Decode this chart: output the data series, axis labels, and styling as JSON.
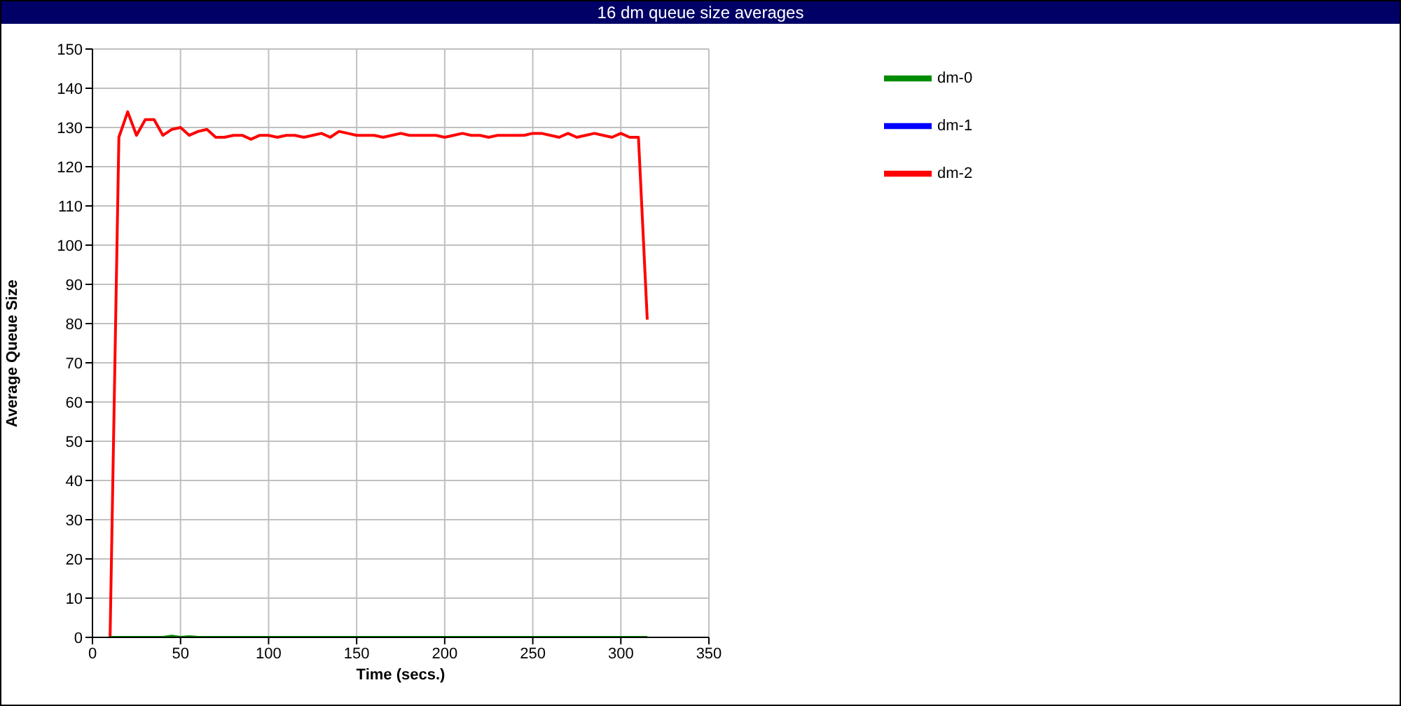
{
  "chart_data": {
    "type": "line",
    "title": "16 dm queue size averages",
    "xlabel": "Time (secs.)",
    "ylabel": "Average Queue Size",
    "x": [
      10,
      15,
      20,
      25,
      30,
      35,
      40,
      45,
      50,
      55,
      60,
      65,
      70,
      75,
      80,
      85,
      90,
      95,
      100,
      105,
      110,
      115,
      120,
      125,
      130,
      135,
      140,
      145,
      150,
      155,
      160,
      165,
      170,
      175,
      180,
      185,
      190,
      195,
      200,
      205,
      210,
      215,
      220,
      225,
      230,
      235,
      240,
      245,
      250,
      255,
      260,
      265,
      270,
      275,
      280,
      285,
      290,
      295,
      300,
      305,
      310,
      315
    ],
    "series": [
      {
        "name": "dm-2",
        "color": "#ff0000",
        "values": [
          0,
          127.5,
          134,
          128,
          132,
          132,
          128,
          129.5,
          130,
          128,
          129,
          129.5,
          127.5,
          127.5,
          128,
          128,
          127,
          128,
          128,
          127.5,
          128,
          128,
          127.5,
          128,
          128.5,
          127.5,
          129,
          128.5,
          128,
          128,
          128,
          127.5,
          128,
          128.5,
          128,
          128,
          128,
          128,
          127.5,
          128,
          128.5,
          128,
          128,
          127.5,
          128,
          128,
          128,
          128,
          128.5,
          128.5,
          128,
          127.5,
          128.5,
          127.5,
          128,
          128.5,
          128,
          127.5,
          128.5,
          127.5,
          127.5,
          81
        ]
      },
      {
        "name": "dm-0",
        "color": "#008c00",
        "values": [
          0,
          0,
          0,
          0,
          0,
          0,
          0,
          0.3,
          0,
          0.2,
          0,
          0,
          0,
          0,
          0,
          0,
          0,
          0,
          0,
          0,
          0,
          0,
          0,
          0,
          0,
          0,
          0,
          0,
          0,
          0,
          0,
          0,
          0,
          0,
          0,
          0,
          0,
          0,
          0,
          0,
          0,
          0,
          0,
          0,
          0,
          0,
          0,
          0,
          0,
          0,
          0,
          0,
          0,
          0,
          0,
          0,
          0,
          0,
          0,
          0,
          0,
          0
        ]
      },
      {
        "name": "dm-1",
        "color": "#0000ff",
        "values": [
          null,
          null,
          null,
          null,
          null,
          null,
          null,
          null,
          null,
          null,
          null,
          null,
          null,
          null,
          null,
          null,
          null,
          null,
          null,
          null,
          null,
          null,
          null,
          null,
          null,
          null,
          null,
          null,
          null,
          null,
          null,
          null,
          null,
          null,
          null,
          null,
          null,
          null,
          null,
          null,
          null,
          null,
          null,
          null,
          null,
          null,
          null,
          null,
          null,
          null,
          null,
          null,
          null,
          null,
          null,
          null,
          null,
          null,
          null,
          null,
          null,
          null
        ]
      }
    ],
    "xlim": [
      0,
      350
    ],
    "xticks": [
      0,
      50,
      100,
      150,
      200,
      250,
      300,
      350
    ],
    "ylim": [
      0,
      150
    ],
    "yticks": [
      0,
      10,
      20,
      30,
      40,
      50,
      60,
      70,
      80,
      90,
      100,
      110,
      120,
      130,
      140,
      150
    ],
    "grid": true,
    "legend": "right",
    "marker": "none",
    "line_style": "solid"
  }
}
